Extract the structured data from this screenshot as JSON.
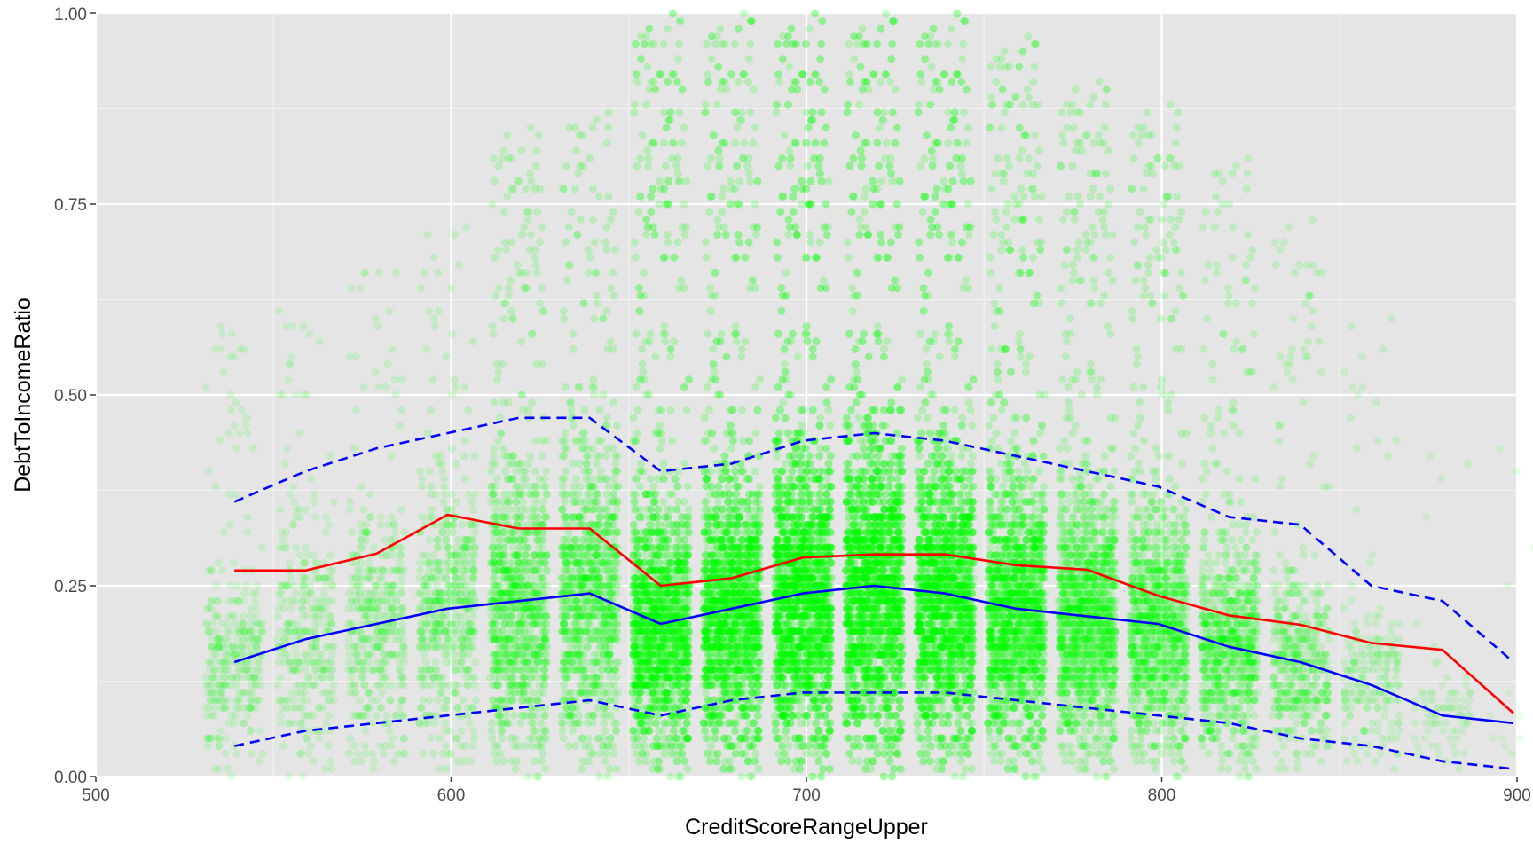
{
  "chart_data": {
    "type": "scatter",
    "title": "",
    "xlabel": "CreditScoreRangeUpper",
    "ylabel": "DebtToIncomeRatio",
    "xlim": [
      500,
      900
    ],
    "ylim": [
      0,
      1
    ],
    "x_ticks": [
      {
        "value": 500,
        "label": "500"
      },
      {
        "value": 600,
        "label": "600"
      },
      {
        "value": 700,
        "label": "700"
      },
      {
        "value": 800,
        "label": "800"
      },
      {
        "value": 900,
        "label": "900"
      }
    ],
    "y_ticks": [
      {
        "value": 0,
        "label": "0.00"
      },
      {
        "value": 0.25,
        "label": "0.25"
      },
      {
        "value": 0.5,
        "label": "0.50"
      },
      {
        "value": 0.75,
        "label": "0.75"
      },
      {
        "value": 1,
        "label": "1.00"
      }
    ],
    "grid": true,
    "legend": "none",
    "colors": {
      "panel_background": "#e5e5e5",
      "grid_major": "#ffffff",
      "grid_minor": "#f2f2f2",
      "points": "#00ff00",
      "mean_line": "#ff0000",
      "quantile_lines": "#0000ff"
    },
    "scatter_groups": [
      {
        "x": 539,
        "count": 320,
        "density": 0.35,
        "median": 0.15
      },
      {
        "x": 559,
        "count": 320,
        "density": 0.35,
        "median": 0.18
      },
      {
        "x": 579,
        "count": 400,
        "density": 0.45,
        "median": 0.2
      },
      {
        "x": 599,
        "count": 500,
        "density": 0.55,
        "median": 0.22
      },
      {
        "x": 619,
        "count": 1000,
        "density": 0.75,
        "median": 0.23
      },
      {
        "x": 639,
        "count": 1000,
        "density": 0.8,
        "median": 0.24
      },
      {
        "x": 659,
        "count": 1800,
        "density": 1.0,
        "median": 0.2
      },
      {
        "x": 679,
        "count": 2000,
        "density": 1.0,
        "median": 0.22
      },
      {
        "x": 699,
        "count": 2400,
        "density": 1.0,
        "median": 0.24
      },
      {
        "x": 719,
        "count": 2400,
        "density": 1.0,
        "median": 0.25
      },
      {
        "x": 739,
        "count": 2200,
        "density": 1.0,
        "median": 0.24
      },
      {
        "x": 759,
        "count": 1800,
        "density": 0.95,
        "median": 0.22
      },
      {
        "x": 779,
        "count": 1400,
        "density": 0.85,
        "median": 0.21
      },
      {
        "x": 799,
        "count": 1100,
        "density": 0.8,
        "median": 0.2
      },
      {
        "x": 819,
        "count": 800,
        "density": 0.7,
        "median": 0.17
      },
      {
        "x": 839,
        "count": 450,
        "density": 0.55,
        "median": 0.15
      },
      {
        "x": 859,
        "count": 200,
        "density": 0.35,
        "median": 0.12
      },
      {
        "x": 879,
        "count": 80,
        "density": 0.2,
        "median": 0.08
      },
      {
        "x": 899,
        "count": 12,
        "density": 0.1,
        "median": 0.07
      }
    ],
    "series": [
      {
        "style": "solid",
        "color": "#ff0000",
        "x": [
          539,
          559,
          579,
          599,
          619,
          639,
          659,
          679,
          699,
          719,
          739,
          759,
          779,
          799,
          819,
          839,
          859,
          879,
          899
        ],
        "values": [
          0.27,
          0.27,
          0.292,
          0.343,
          0.325,
          0.325,
          0.25,
          0.26,
          0.287,
          0.291,
          0.291,
          0.277,
          0.271,
          0.237,
          0.211,
          0.199,
          0.175,
          0.166,
          0.083
        ]
      },
      {
        "style": "solid",
        "color": "#0000ff",
        "x": [
          539,
          559,
          579,
          599,
          619,
          639,
          659,
          679,
          699,
          719,
          739,
          759,
          779,
          799,
          819,
          839,
          859,
          879,
          899
        ],
        "values": [
          0.15,
          0.18,
          0.2,
          0.22,
          0.23,
          0.24,
          0.2,
          0.22,
          0.24,
          0.25,
          0.24,
          0.22,
          0.21,
          0.2,
          0.17,
          0.15,
          0.12,
          0.08,
          0.07
        ]
      },
      {
        "style": "dashed",
        "color": "#0000ff",
        "x": [
          539,
          559,
          579,
          599,
          619,
          639,
          659,
          679,
          699,
          719,
          739,
          759,
          779,
          799,
          819,
          839,
          859,
          879,
          899
        ],
        "values": [
          0.36,
          0.4,
          0.43,
          0.45,
          0.47,
          0.47,
          0.4,
          0.41,
          0.44,
          0.45,
          0.44,
          0.42,
          0.4,
          0.38,
          0.34,
          0.33,
          0.25,
          0.23,
          0.15
        ]
      },
      {
        "style": "dashed",
        "color": "#0000ff",
        "x": [
          539,
          559,
          579,
          599,
          619,
          639,
          659,
          679,
          699,
          719,
          739,
          759,
          779,
          799,
          819,
          839,
          859,
          879,
          899
        ],
        "values": [
          0.04,
          0.06,
          0.07,
          0.08,
          0.09,
          0.1,
          0.08,
          0.1,
          0.11,
          0.11,
          0.11,
          0.1,
          0.09,
          0.08,
          0.07,
          0.05,
          0.04,
          0.02,
          0.01
        ]
      }
    ]
  }
}
